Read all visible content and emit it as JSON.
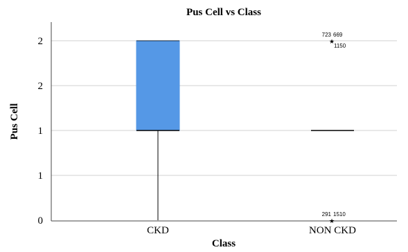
{
  "chart_data": {
    "type": "box",
    "title": "Pus Cell vs Class",
    "xlabel": "Class",
    "ylabel": "Pus Cell",
    "ylim": [
      0,
      2.1
    ],
    "yticks": [
      {
        "value": 0.0,
        "label": "0"
      },
      {
        "value": 0.5,
        "label": "1"
      },
      {
        "value": 1.0,
        "label": "1"
      },
      {
        "value": 1.5,
        "label": "2"
      },
      {
        "value": 2.0,
        "label": "2"
      }
    ],
    "grid": true,
    "box_color": "#5598e6",
    "categories": [
      "CKD",
      "NON CKD"
    ],
    "boxes": [
      {
        "category": "CKD",
        "whisker_low": 0,
        "q1": 1,
        "median": 1,
        "q3": 2,
        "whisker_high": 2,
        "outliers": []
      },
      {
        "category": "NON CKD",
        "whisker_low": 1,
        "q1": 1,
        "median": 1,
        "q3": 1,
        "whisker_high": 1,
        "outliers": [
          {
            "value": 2,
            "labels": [
              "723",
              "669",
              "1150"
            ]
          },
          {
            "value": 0,
            "labels": [
              "291",
              "1510"
            ]
          }
        ]
      }
    ]
  }
}
